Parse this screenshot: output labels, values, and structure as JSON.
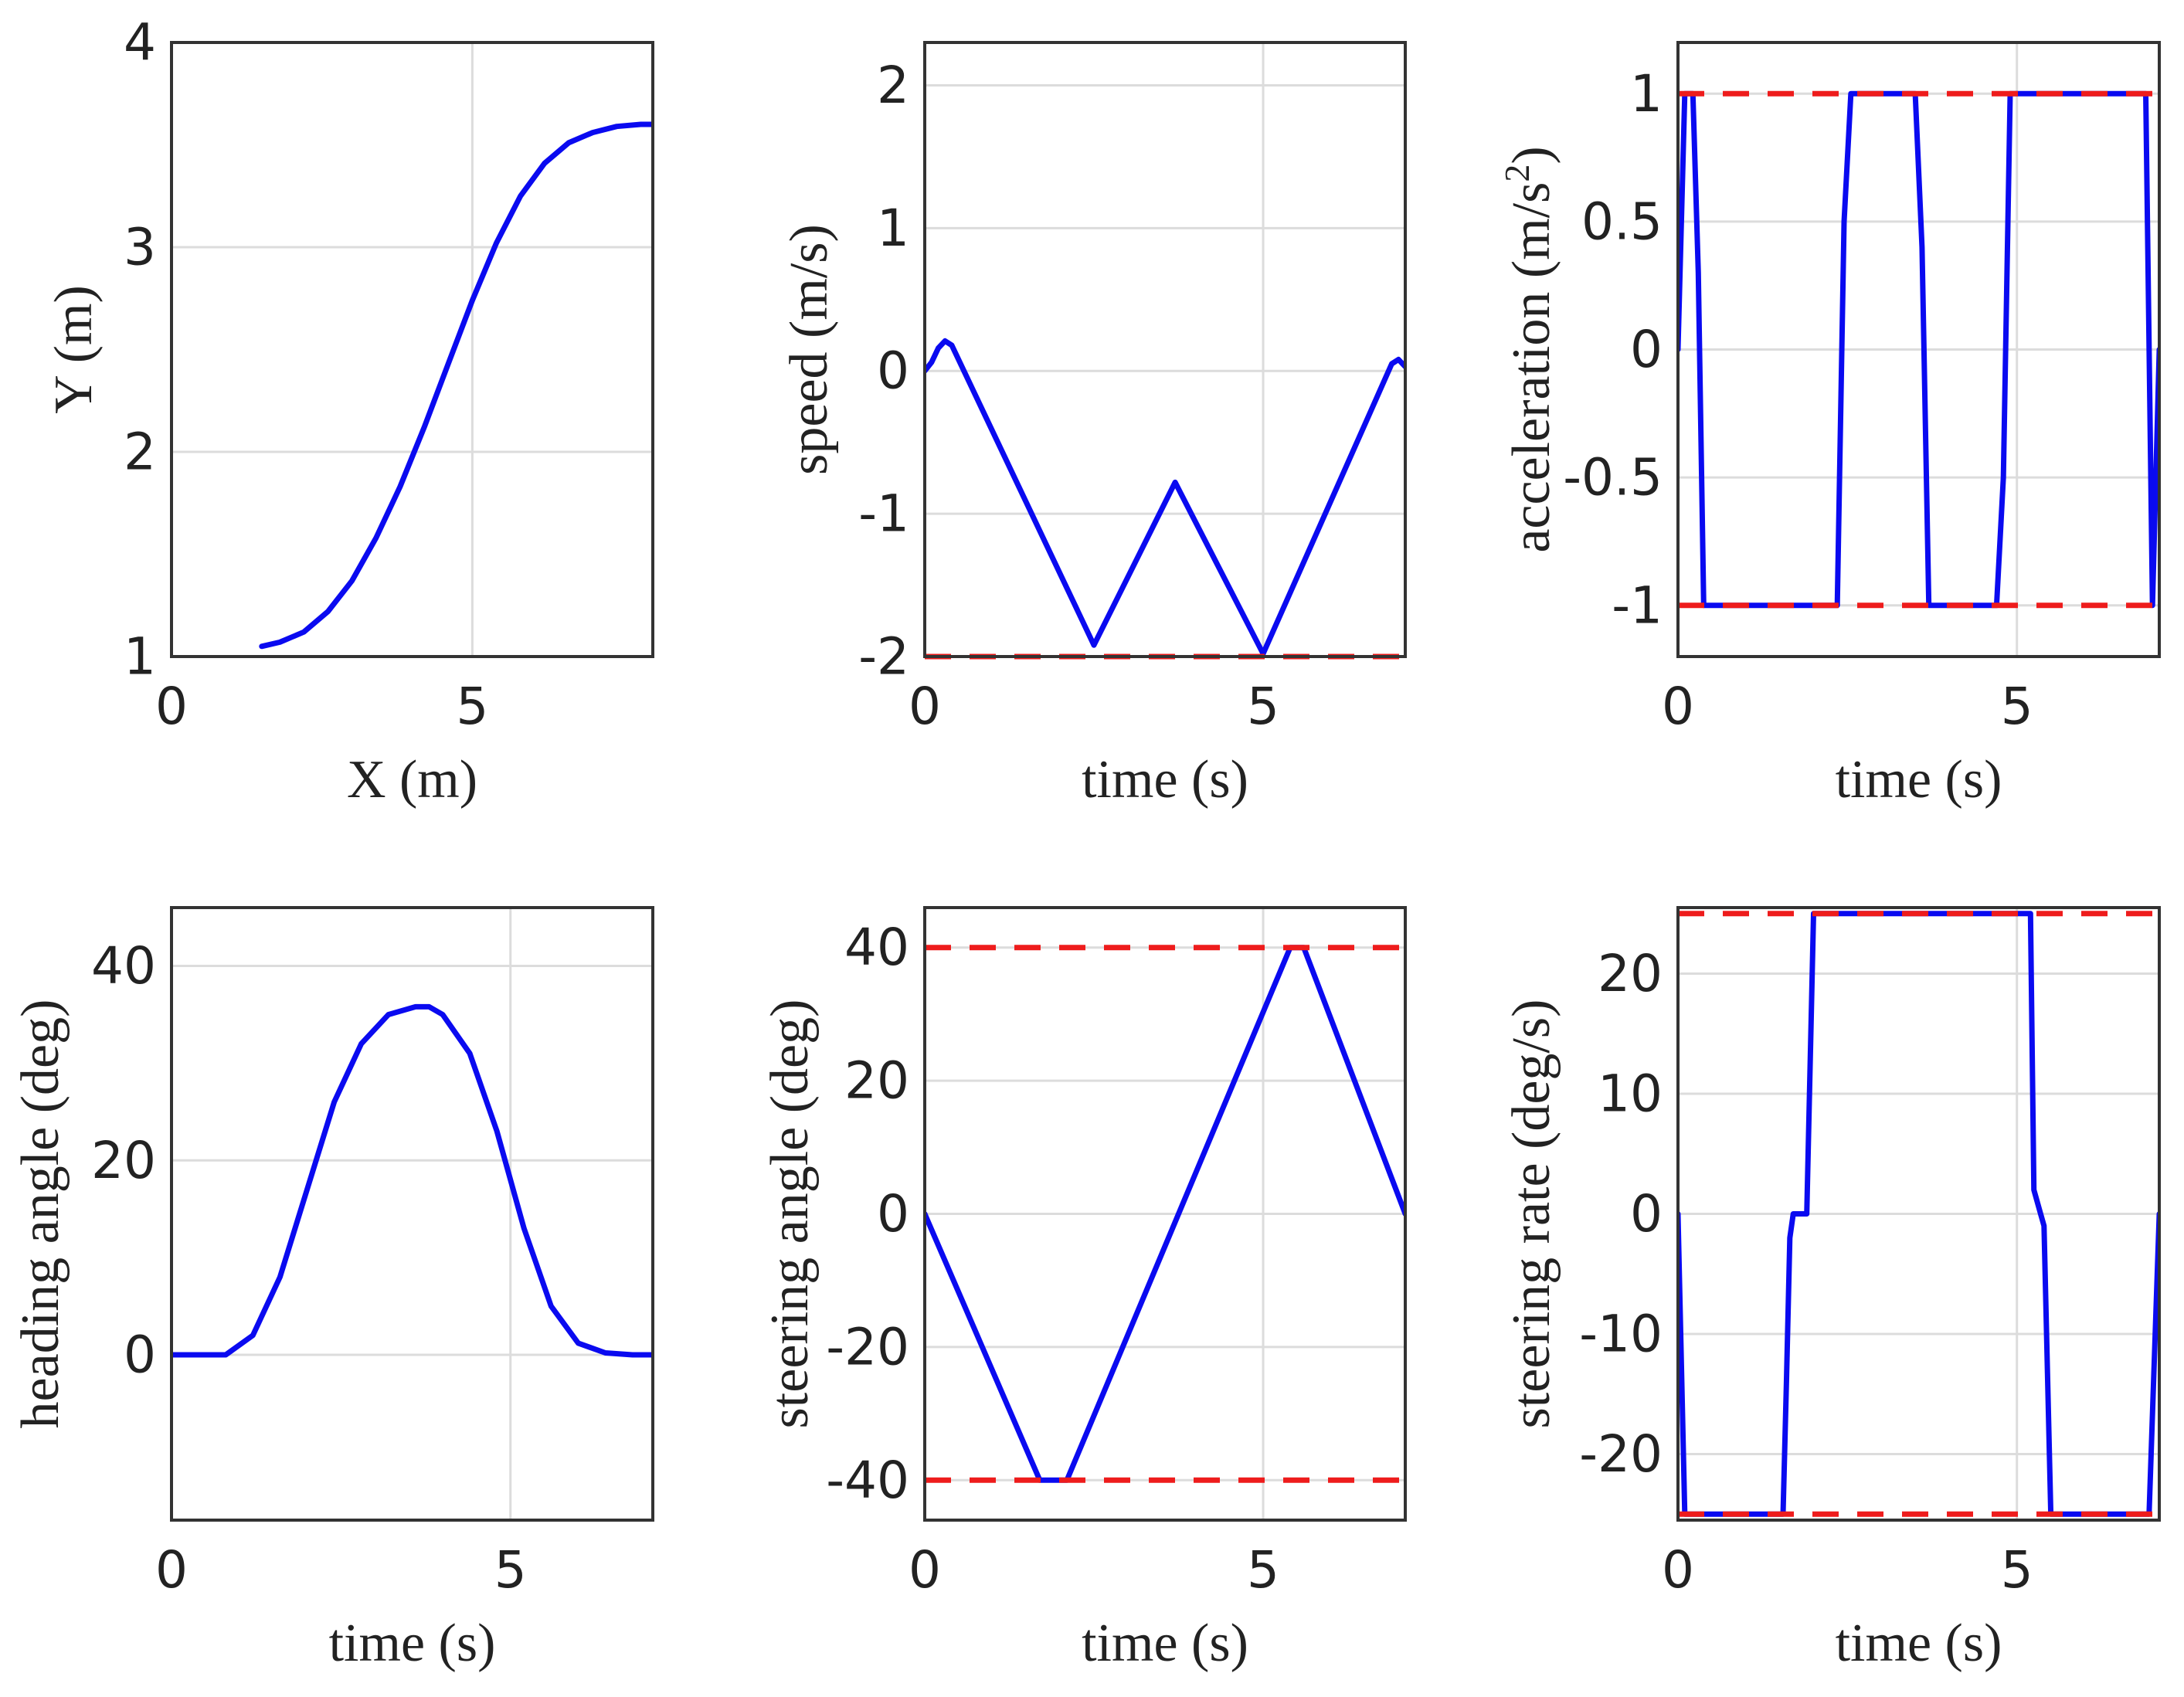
{
  "chart_data": [
    {
      "type": "line",
      "xlabel": "X (m)",
      "ylabel": "Y (m)",
      "xlim": [
        0,
        8
      ],
      "ylim": [
        1,
        4
      ],
      "xticks": [
        0,
        5
      ],
      "yticks": [
        1,
        2,
        3,
        4
      ],
      "grid": true,
      "series": [
        {
          "name": "trajectory",
          "color": "#0a0af0",
          "x": [
            1.5,
            1.8,
            2.2,
            2.6,
            3.0,
            3.4,
            3.8,
            4.2,
            4.6,
            5.0,
            5.4,
            5.8,
            6.2,
            6.6,
            7.0,
            7.4,
            7.8,
            8.0
          ],
          "y": [
            1.05,
            1.07,
            1.12,
            1.22,
            1.37,
            1.58,
            1.83,
            2.12,
            2.43,
            2.74,
            3.02,
            3.25,
            3.41,
            3.51,
            3.56,
            3.59,
            3.6,
            3.6
          ]
        }
      ],
      "limits": []
    },
    {
      "type": "line",
      "xlabel": "time (s)",
      "ylabel": "speed (m/s)",
      "xlim": [
        0,
        7.1
      ],
      "ylim": [
        -2,
        2.3
      ],
      "xticks": [
        0,
        5
      ],
      "yticks": [
        -2,
        -1,
        0,
        1,
        2
      ],
      "grid": true,
      "series": [
        {
          "name": "speed",
          "color": "#0a0af0",
          "x": [
            0,
            0.1,
            0.2,
            0.3,
            0.4,
            2.5,
            3.7,
            5.0,
            6.9,
            7.0,
            7.1
          ],
          "y": [
            0,
            0.06,
            0.16,
            0.21,
            0.18,
            -1.92,
            -0.78,
            -1.98,
            0.05,
            0.08,
            0.03
          ]
        }
      ],
      "limits": [
        {
          "y": -2,
          "color": "#ee1c1c"
        }
      ]
    },
    {
      "type": "line",
      "xlabel": "time (s)",
      "ylabel": "acceleration (m/s",
      "ylabel_superscript": "2",
      "ylabel_suffix": ")",
      "xlim": [
        0,
        7.1
      ],
      "ylim": [
        -1.2,
        1.2
      ],
      "xticks": [
        0,
        5
      ],
      "yticks": [
        -1,
        -0.5,
        0,
        0.5,
        1
      ],
      "grid": true,
      "series": [
        {
          "name": "acceleration",
          "color": "#0a0af0",
          "x": [
            0,
            0.05,
            0.1,
            0.22,
            0.3,
            0.38,
            2.35,
            2.45,
            2.55,
            3.5,
            3.6,
            3.7,
            4.7,
            4.8,
            4.9,
            6.9,
            7.0,
            7.1
          ],
          "y": [
            0,
            0.5,
            1,
            1,
            0.3,
            -1,
            -1,
            0.5,
            1,
            1,
            0.4,
            -1,
            -1,
            -0.5,
            1,
            1,
            -1,
            0
          ]
        }
      ],
      "limits": [
        {
          "y": 1,
          "color": "#ee1c1c"
        },
        {
          "y": -1,
          "color": "#ee1c1c"
        }
      ]
    },
    {
      "type": "line",
      "xlabel": "time (s)",
      "ylabel": "heading angle (deg)",
      "xlim": [
        0,
        7.1
      ],
      "ylim": [
        -17,
        46
      ],
      "xticks": [
        0,
        5
      ],
      "yticks": [
        0,
        20,
        40
      ],
      "grid": true,
      "series": [
        {
          "name": "heading",
          "color": "#0a0af0",
          "x": [
            0,
            0.4,
            0.8,
            1.2,
            1.6,
            2.0,
            2.4,
            2.8,
            3.2,
            3.6,
            3.8,
            4.0,
            4.4,
            4.8,
            5.2,
            5.6,
            6.0,
            6.4,
            6.8,
            7.1
          ],
          "y": [
            0,
            0,
            0,
            2,
            8,
            17,
            26,
            32,
            35,
            35.8,
            35.8,
            35,
            31,
            23,
            13,
            5,
            1.2,
            0.2,
            0,
            0
          ]
        }
      ],
      "limits": []
    },
    {
      "type": "line",
      "xlabel": "time (s)",
      "ylabel": "steering angle (deg)",
      "xlim": [
        0,
        7.1
      ],
      "ylim": [
        -46,
        46
      ],
      "xticks": [
        0,
        5
      ],
      "yticks": [
        -40,
        -20,
        0,
        20,
        40
      ],
      "grid": true,
      "series": [
        {
          "name": "steering angle",
          "color": "#0a0af0",
          "x": [
            0,
            1.7,
            2.1,
            5.4,
            5.6,
            7.1
          ],
          "y": [
            0,
            -40,
            -40,
            40,
            40,
            0
          ]
        }
      ],
      "limits": [
        {
          "y": 40,
          "color": "#ee1c1c"
        },
        {
          "y": -40,
          "color": "#ee1c1c"
        }
      ]
    },
    {
      "type": "line",
      "xlabel": "time (s)",
      "ylabel": "steering rate (deg/s)",
      "xlim": [
        0,
        7.1
      ],
      "ylim": [
        -25.5,
        25.5
      ],
      "xticks": [
        0,
        5
      ],
      "yticks": [
        -20,
        -10,
        0,
        10,
        20
      ],
      "grid": true,
      "series": [
        {
          "name": "steering rate",
          "color": "#0a0af0",
          "x": [
            0,
            0.1,
            1.55,
            1.6,
            1.65,
            1.7,
            1.9,
            2.0,
            5.2,
            5.25,
            5.35,
            5.4,
            5.5,
            6.95,
            7.1
          ],
          "y": [
            0,
            -25,
            -25,
            -14,
            -2,
            0,
            0,
            25,
            25,
            2,
            0,
            -1,
            -25,
            -25,
            0
          ]
        }
      ],
      "limits": [
        {
          "y": 25,
          "color": "#ee1c1c"
        },
        {
          "y": -25,
          "color": "#ee1c1c"
        }
      ]
    }
  ]
}
